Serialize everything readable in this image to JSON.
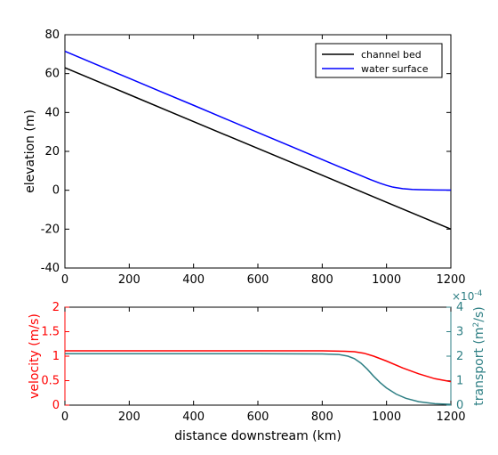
{
  "chart_data": [
    {
      "type": "line",
      "xlabel": "",
      "ylabel": "elevation (m)",
      "xlim": [
        0,
        1200
      ],
      "ylim": [
        -40,
        80
      ],
      "x_ticks": [
        "0",
        "200",
        "400",
        "600",
        "800",
        "1000",
        "1200"
      ],
      "y_ticks": [
        "-40",
        "-20",
        "0",
        "20",
        "40",
        "60",
        "80"
      ],
      "legend": {
        "position": "top-right",
        "entries": [
          "channel bed",
          "water surface"
        ]
      },
      "series": [
        {
          "name": "channel bed",
          "color": "#000000",
          "x": [
            0,
            200,
            400,
            600,
            800,
            1000,
            1200
          ],
          "y": [
            63,
            49.2,
            35.3,
            21.5,
            7.7,
            -6.2,
            -20
          ]
        },
        {
          "name": "water surface",
          "color": "#0000ff",
          "x": [
            0,
            100,
            200,
            300,
            400,
            500,
            600,
            700,
            800,
            850,
            900,
            950,
            980,
            1000,
            1020,
            1050,
            1080,
            1100,
            1150,
            1200
          ],
          "y": [
            71.5,
            64.5,
            57.6,
            50.6,
            43.7,
            36.7,
            29.7,
            22.8,
            15.8,
            12.3,
            8.9,
            5.5,
            3.6,
            2.5,
            1.6,
            0.8,
            0.4,
            0.3,
            0.15,
            0.1
          ]
        }
      ]
    },
    {
      "type": "line",
      "xlabel": "distance downstream (km)",
      "ylabel_left": "velocity (m/s)",
      "ylabel_right": "transport (m",
      "ylabel_right_sup": "2",
      "ylabel_right_end": "/s)",
      "right_axis_multiplier_base": "×10",
      "right_axis_multiplier_exp": "-4",
      "xlim": [
        0,
        1200
      ],
      "ylim_left": [
        0,
        2
      ],
      "ylim_right": [
        0,
        4
      ],
      "x_ticks": [
        "0",
        "200",
        "400",
        "600",
        "800",
        "1000",
        "1200"
      ],
      "y_ticks_left": [
        "0",
        "0.5",
        "1",
        "1.5",
        "2"
      ],
      "y_ticks_right": [
        "0",
        "1",
        "2",
        "3",
        "4"
      ],
      "colors": {
        "left": "#ff0000",
        "right": "#2e7f84"
      },
      "series": [
        {
          "axis": "left",
          "color": "#ff0000",
          "x": [
            0,
            200,
            400,
            600,
            800,
            870,
            900,
            930,
            960,
            1000,
            1050,
            1100,
            1150,
            1200
          ],
          "y": [
            1.11,
            1.11,
            1.11,
            1.11,
            1.11,
            1.1,
            1.09,
            1.06,
            1.0,
            0.9,
            0.76,
            0.64,
            0.54,
            0.48
          ]
        },
        {
          "axis": "right",
          "color": "#2e7f84",
          "x": [
            0,
            200,
            400,
            600,
            800,
            850,
            880,
            900,
            920,
            940,
            960,
            980,
            1000,
            1030,
            1060,
            1100,
            1150,
            1200
          ],
          "y": [
            2.1,
            2.1,
            2.1,
            2.1,
            2.09,
            2.07,
            2.0,
            1.9,
            1.72,
            1.47,
            1.18,
            0.92,
            0.7,
            0.45,
            0.28,
            0.14,
            0.06,
            0.03
          ]
        }
      ]
    }
  ]
}
